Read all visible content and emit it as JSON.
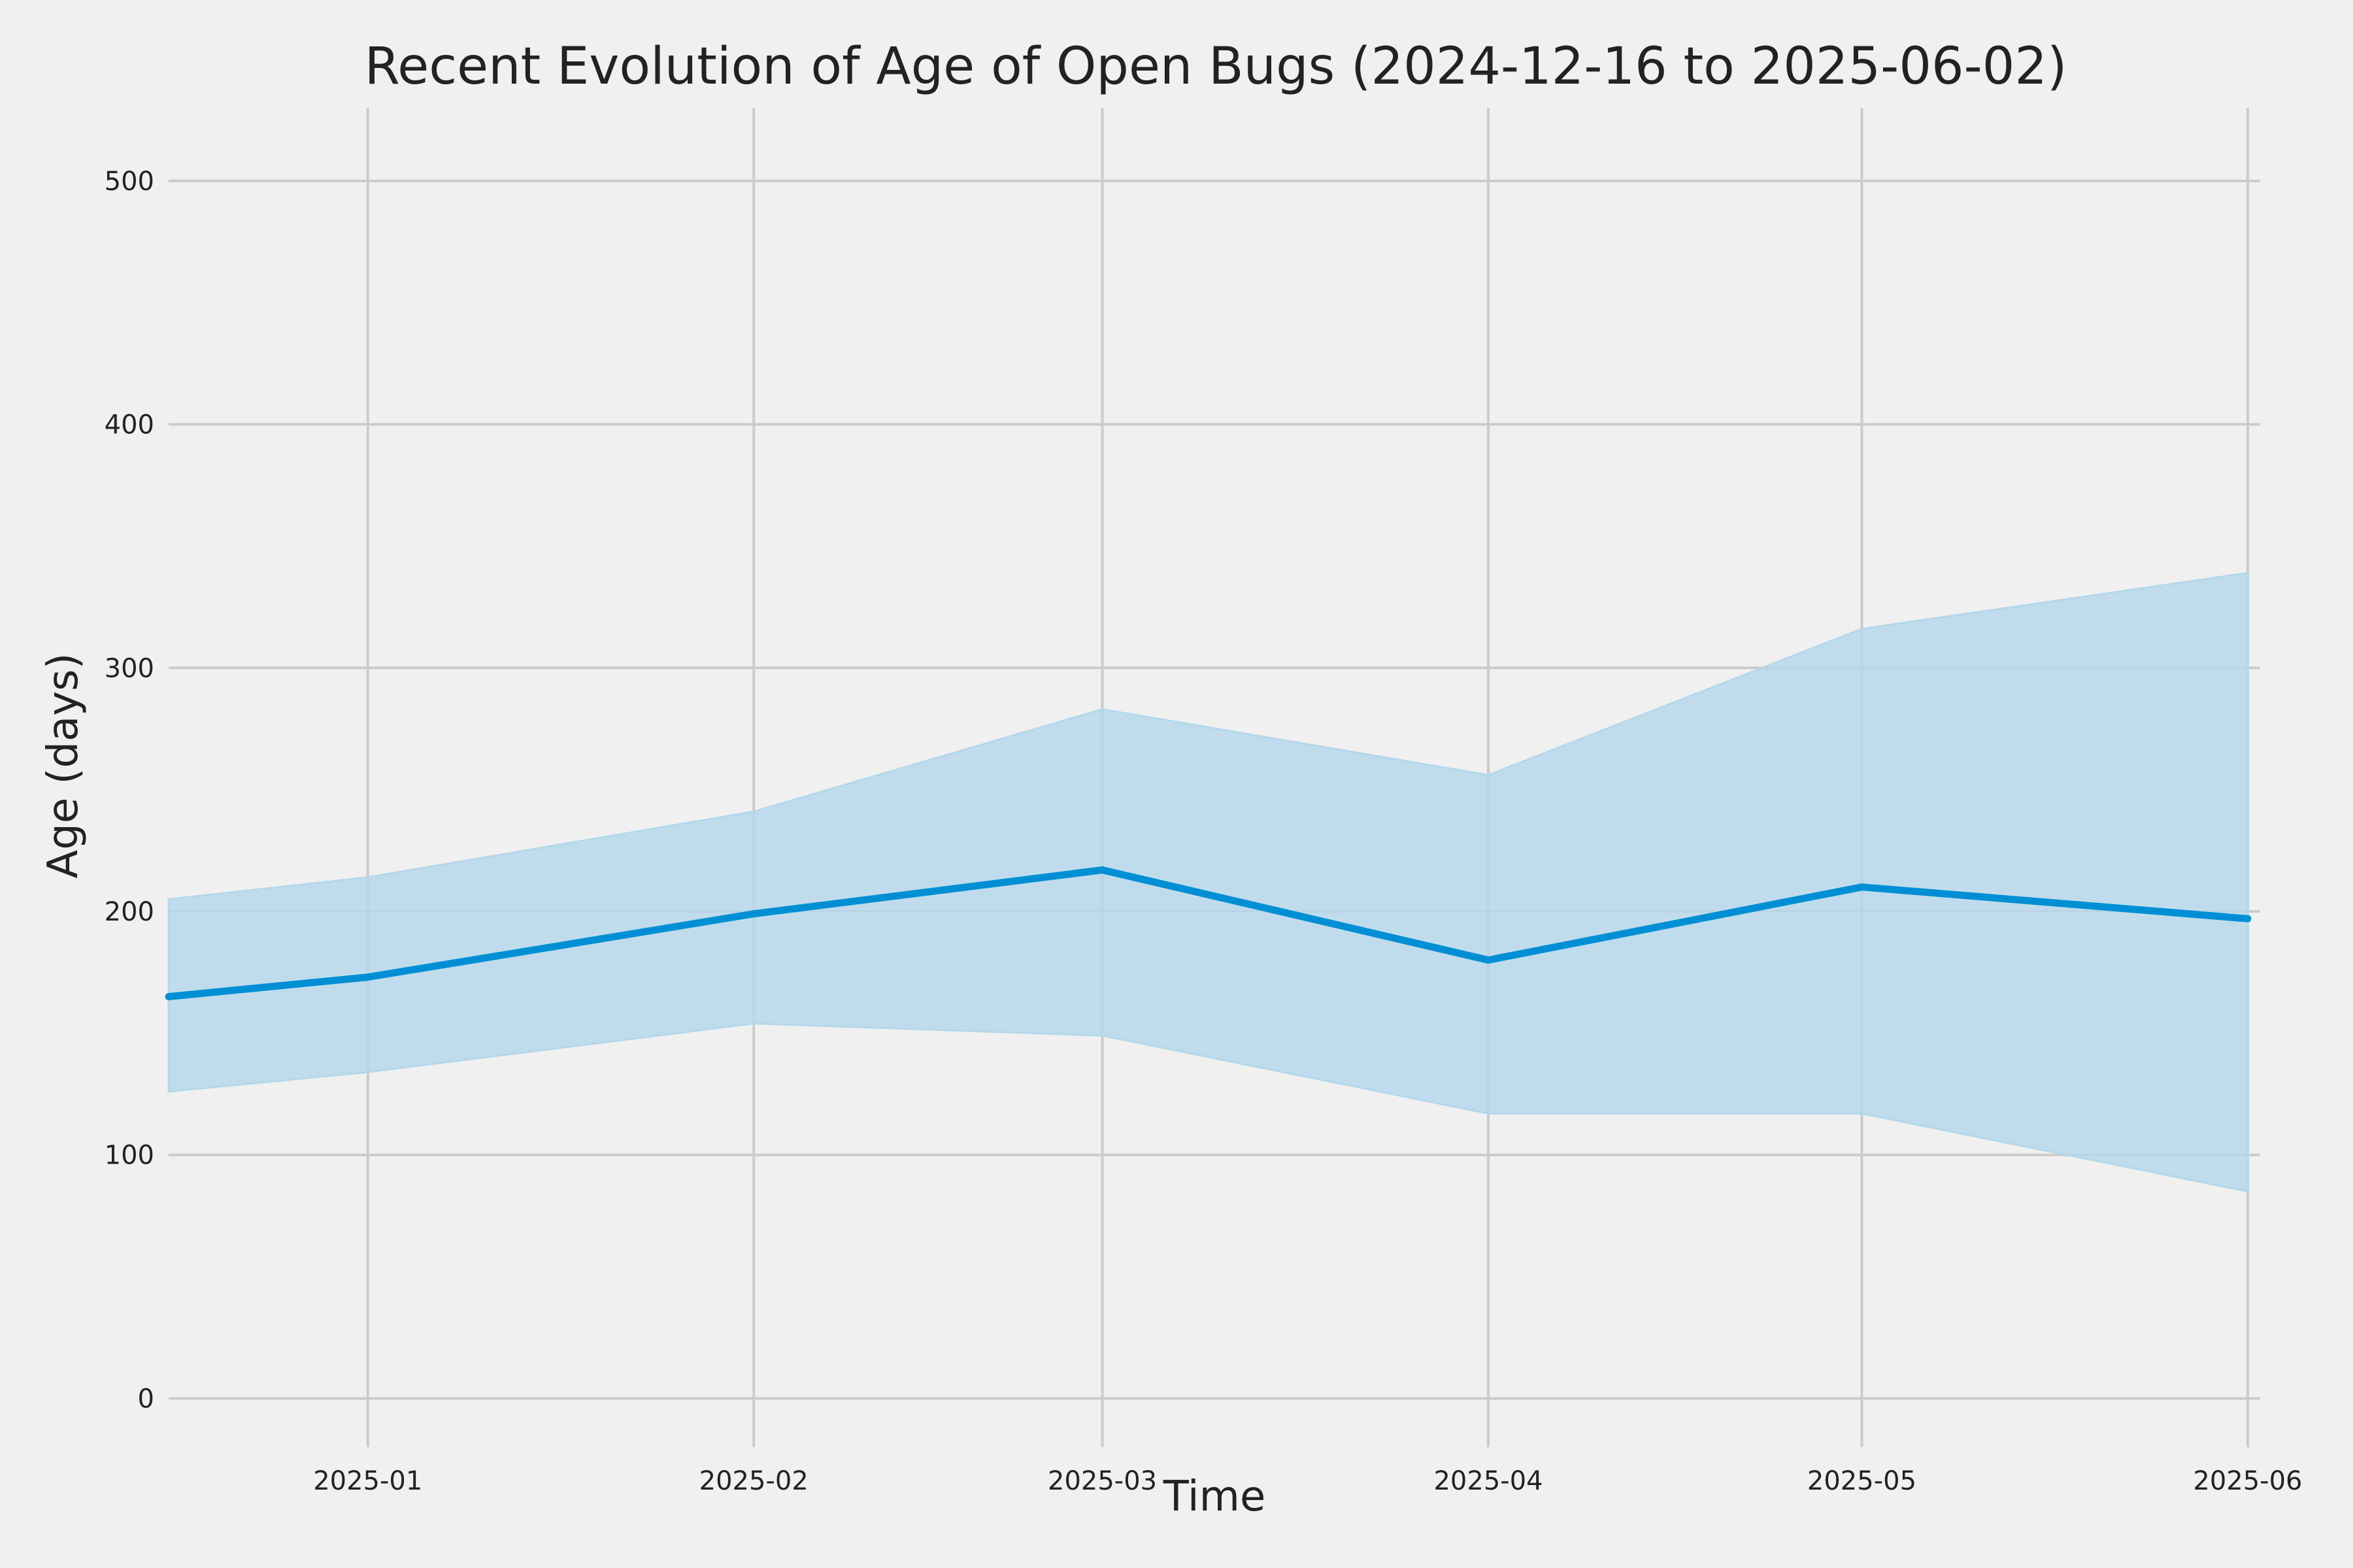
{
  "chart_data": {
    "type": "line",
    "title": "Recent Evolution of Age of Open Bugs (2024-12-16 to 2025-06-02)",
    "xlabel": "Time",
    "ylabel": "Age (days)",
    "x_axis": "date",
    "xlim": [
      "2024-12-16",
      "2025-06-02"
    ],
    "ylim": [
      -20,
      530
    ],
    "grid": true,
    "legend": "none",
    "x_ticks": [
      {
        "date": "2025-01-01",
        "label": "2025-01"
      },
      {
        "date": "2025-02-01",
        "label": "2025-02"
      },
      {
        "date": "2025-03-01",
        "label": "2025-03"
      },
      {
        "date": "2025-04-01",
        "label": "2025-04"
      },
      {
        "date": "2025-05-01",
        "label": "2025-05"
      },
      {
        "date": "2025-06-01",
        "label": "2025-06"
      }
    ],
    "y_ticks": [
      {
        "value": 0,
        "label": "0"
      },
      {
        "value": 100,
        "label": "100"
      },
      {
        "value": 200,
        "label": "200"
      },
      {
        "value": 300,
        "label": "300"
      },
      {
        "value": 400,
        "label": "400"
      },
      {
        "value": 500,
        "label": "500"
      }
    ],
    "x": [
      "2024-12-16",
      "2025-01-01",
      "2025-02-01",
      "2025-03-01",
      "2025-04-01",
      "2025-05-01",
      "2025-06-01"
    ],
    "series": [
      {
        "values": [
          165,
          173,
          199,
          217,
          180,
          210,
          197
        ],
        "lower": [
          126,
          134,
          154,
          149,
          117,
          117,
          85
        ],
        "upper": [
          205,
          214,
          241,
          283,
          256,
          316,
          339
        ],
        "color": "#008fd5",
        "band_color": "#b4d7eb"
      }
    ]
  }
}
